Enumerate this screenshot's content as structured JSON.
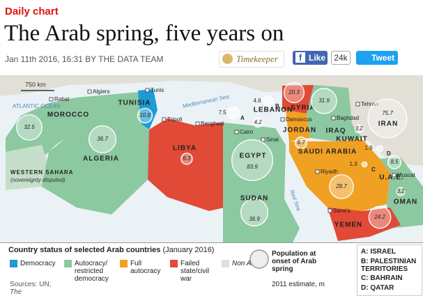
{
  "header": {
    "section": "Daily chart",
    "title": "The Arab spring, five years on",
    "byline": "Jan 11th 2016, 16:31 BY THE DATA TEAM",
    "timekeeper": "Timekeeper",
    "like": "Like",
    "like_count": "24k",
    "tweet": "Tweet"
  },
  "map": {
    "scale": "750 km",
    "seas": [
      "ATLANTIC OCEAN",
      "Mediterranean Sea",
      "Red Sea"
    ],
    "cities": [
      "Rabat",
      "Algiers",
      "Tunis",
      "Tripoli",
      "Benghazi",
      "Cairo",
      "Sinai",
      "Damascus",
      "Baghdad",
      "Tehran",
      "Riyadh",
      "Muscat",
      "Sana'a"
    ],
    "western_sahara": "WESTERN SAHARA",
    "western_sahara_note": "(sovereignty disputed)",
    "countries": [
      {
        "name": "MOROCCO",
        "population": 32.5
      },
      {
        "name": "ALGERIA",
        "population": 36.7
      },
      {
        "name": "TUNISIA",
        "population": 10.8
      },
      {
        "name": "LIBYA",
        "population": 6.3
      },
      {
        "name": "EGYPT",
        "population": 83.9
      },
      {
        "name": "SUDAN",
        "population": 36.9
      },
      {
        "name": "LEBANON",
        "population": 4.2
      },
      {
        "name": "SYRIA",
        "population": 20.3
      },
      {
        "name": "JORDAN",
        "population": 6.7
      },
      {
        "name": "IRAQ",
        "population": 31.9
      },
      {
        "name": "KUWAIT",
        "population": 3.2
      },
      {
        "name": "IRAN",
        "population": 75.7
      },
      {
        "name": "SAUDI ARABIA",
        "population": 28.7
      },
      {
        "name": "U.A.E.",
        "population": 8.5
      },
      {
        "name": "OMAN",
        "population": 3.2
      },
      {
        "name": "YEMEN",
        "population": 24.2
      }
    ],
    "small": [
      {
        "key": "A",
        "population": 7.5
      },
      {
        "key": "B",
        "population": 4.6
      },
      {
        "key": "C",
        "population": 1.3
      },
      {
        "key": "D",
        "population": 1.9
      }
    ]
  },
  "legend": {
    "title": "Country status of selected Arab countries",
    "title_date": "(January 2016)",
    "items": [
      "Democracy",
      "Autocracy/ restricted democracy",
      "Full autocracy",
      "Failed state/civil war",
      "Non Arab"
    ],
    "sources": "Sources: UN;",
    "sources_2": "The Economist",
    "population": "Population at onset of Arab spring",
    "population_note": "2011 estimate, m",
    "key": [
      "A: ISRAEL",
      "B: PALESTINIAN TERRITORIES",
      "C: BAHRAIN",
      "D: QATAR"
    ]
  }
}
